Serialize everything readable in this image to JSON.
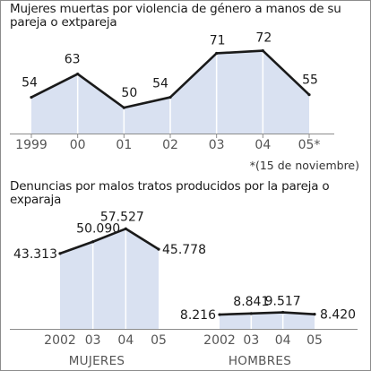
{
  "chart_data": [
    {
      "type": "area",
      "title": "Mujeres muertas por violencia de género a manos de su pareja o extpareja",
      "categories": [
        "1999",
        "00",
        "01",
        "02",
        "03",
        "04",
        "05*"
      ],
      "values": [
        54,
        63,
        50,
        54,
        71,
        72,
        55
      ],
      "value_labels": [
        "54",
        "63",
        "50",
        "54",
        "71",
        "72",
        "55"
      ],
      "ylim": [
        40,
        75
      ],
      "footnote": "*(15 de noviembre)",
      "colors": {
        "fill": "#d9e1f1",
        "line": "#1a1a1a",
        "grid": "#ffffff"
      }
    },
    {
      "type": "area",
      "title": "Denuncias por malos tratos producidos por la pareja o exparaja",
      "groups": [
        {
          "name": "MUJERES",
          "categories": [
            "2002",
            "03",
            "04",
            "05"
          ],
          "values": [
            43313,
            50090,
            57527,
            45778
          ],
          "value_labels": [
            "43.313",
            "50.090",
            "57.527",
            "45.778"
          ]
        },
        {
          "name": "HOMBRES",
          "categories": [
            "2002",
            "03",
            "04",
            "05"
          ],
          "values": [
            8216,
            8841,
            9517,
            8420
          ],
          "value_labels": [
            "8.216",
            "8.841",
            "9.517",
            "8.420"
          ]
        }
      ],
      "ylim": [
        0,
        62000
      ],
      "colors": {
        "fill": "#d9e1f1",
        "line": "#1a1a1a",
        "grid": "#ffffff"
      }
    }
  ]
}
